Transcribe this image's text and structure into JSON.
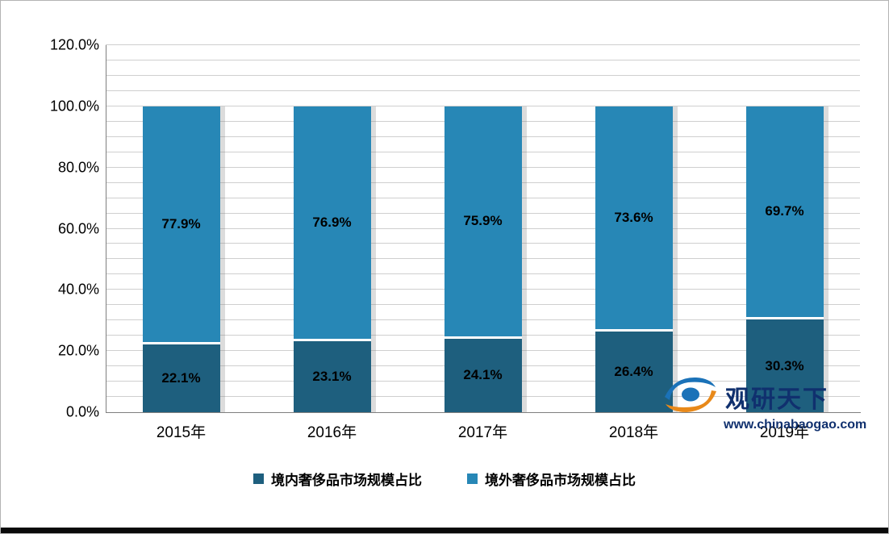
{
  "chart_data": {
    "type": "bar",
    "stacked": true,
    "title": "",
    "categories": [
      "2015年",
      "2016年",
      "2017年",
      "2018年",
      "2019年"
    ],
    "series": [
      {
        "name": "境内奢侈品市场规模占比",
        "color": "#1e5f7e",
        "values": [
          22.1,
          23.1,
          24.1,
          26.4,
          30.3
        ],
        "labels": [
          "22.1%",
          "23.1%",
          "24.1%",
          "26.4%",
          "30.3%"
        ]
      },
      {
        "name": "境外奢侈品市场规模占比",
        "color": "#2787b6",
        "values": [
          77.9,
          76.9,
          75.9,
          73.6,
          69.7
        ],
        "labels": [
          "77.9%",
          "76.9%",
          "75.9%",
          "73.6%",
          "69.7%"
        ]
      }
    ],
    "ylim": [
      0,
      120
    ],
    "ytick_step": 20,
    "y_ticks": [
      "0.0%",
      "20.0%",
      "40.0%",
      "60.0%",
      "80.0%",
      "100.0%",
      "120.0%"
    ],
    "grid": true,
    "grid_step": 5,
    "legend_position": "bottom"
  },
  "watermark": {
    "title": "观研天下",
    "url": "www.chinabaogao.com"
  },
  "colors": {
    "gridline": "#cfcfcf",
    "axis": "#7f7f7f",
    "watermark_blue": "#1b72b8",
    "watermark_orange": "#e8891a"
  }
}
